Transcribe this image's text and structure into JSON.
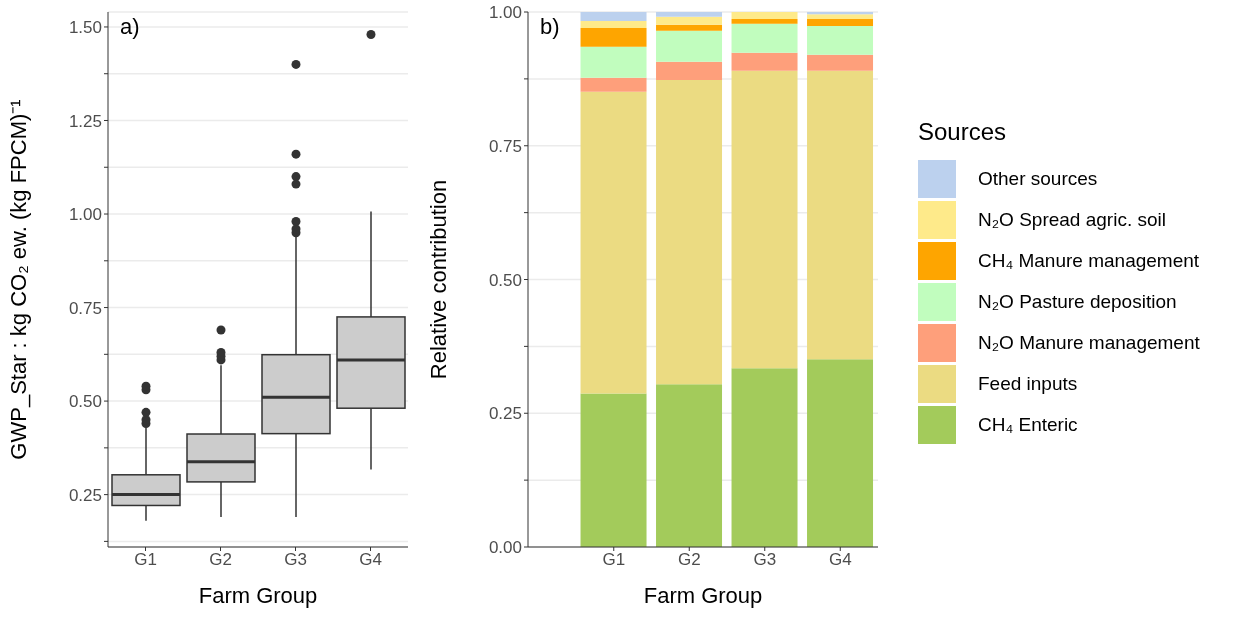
{
  "chart_data": [
    {
      "type": "box",
      "categories": [
        "G1",
        "G2",
        "G3",
        "G4"
      ],
      "xlabel": "Farm Group",
      "ylabel": "GWP_Star :  kg CO₂ ew. (kg FPCM)⁻¹",
      "ylim": [
        0.11,
        1.54
      ],
      "yticks": [
        {
          "value": 0.125,
          "label": null
        },
        {
          "value": 0.25,
          "label": "0.25"
        },
        {
          "value": 0.375,
          "label": null
        },
        {
          "value": 0.5,
          "label": "0.50"
        },
        {
          "value": 0.625,
          "label": null
        },
        {
          "value": 0.75,
          "label": "0.75"
        },
        {
          "value": 0.875,
          "label": null
        },
        {
          "value": 1,
          "label": "1.00"
        },
        {
          "value": 1.125,
          "label": null
        },
        {
          "value": 1.25,
          "label": "1.25"
        },
        {
          "value": 1.375,
          "label": null
        },
        {
          "value": 1.5,
          "label": "1.50"
        }
      ],
      "grid": "y",
      "color": "#cccccc",
      "annotations": [
        "a)"
      ],
      "boxes": [
        {
          "low": 0.18,
          "q1": 0.221,
          "median": 0.25,
          "q3": 0.303,
          "high": 0.43,
          "outliers": [
            0.44,
            0.45,
            0.47,
            0.53,
            0.54
          ]
        },
        {
          "low": 0.19,
          "q1": 0.284,
          "median": 0.338,
          "q3": 0.412,
          "high": 0.596,
          "outliers": [
            0.61,
            0.62,
            0.63,
            0.69
          ]
        },
        {
          "low": 0.19,
          "q1": 0.413,
          "median": 0.51,
          "q3": 0.624,
          "high": 0.941,
          "outliers": [
            0.95,
            0.96,
            0.98,
            1.08,
            1.1,
            1.16,
            1.4
          ]
        },
        {
          "low": 0.317,
          "q1": 0.481,
          "median": 0.61,
          "q3": 0.725,
          "high": 1.007,
          "outliers": [
            1.48
          ]
        }
      ]
    },
    {
      "type": "bar",
      "stacked": true,
      "categories": [
        "G1",
        "G2",
        "G3",
        "G4"
      ],
      "xlabel": "Farm Group",
      "ylabel": "Relative contribution",
      "ylim": [
        0,
        1
      ],
      "yticks": [
        {
          "value": 0,
          "label": "0.00"
        },
        {
          "value": 0.125,
          "label": null
        },
        {
          "value": 0.25,
          "label": "0.25"
        },
        {
          "value": 0.375,
          "label": null
        },
        {
          "value": 0.5,
          "label": "0.50"
        },
        {
          "value": 0.625,
          "label": null
        },
        {
          "value": 0.75,
          "label": "0.75"
        },
        {
          "value": 0.875,
          "label": null
        },
        {
          "value": 1,
          "label": "1.00"
        }
      ],
      "grid": "y",
      "legend": "right",
      "legend_title": "Sources",
      "annotations": [
        "b)"
      ],
      "series": [
        {
          "name": "CH₄ Enteric",
          "color": "#a3cb5b",
          "values": [
            0.287,
            0.304,
            0.334,
            0.351
          ]
        },
        {
          "name": "Feed inputs",
          "color": "#ebdb82",
          "values": [
            0.564,
            0.569,
            0.556,
            0.539
          ]
        },
        {
          "name": "N₂O Manure management",
          "color": "#fe9f7b",
          "values": [
            0.026,
            0.034,
            0.034,
            0.03
          ]
        },
        {
          "name": "N₂O Pasture deposition",
          "color": "#c1fdbe",
          "values": [
            0.058,
            0.058,
            0.054,
            0.054
          ]
        },
        {
          "name": "CH₄ Manure management",
          "color": "#fea500",
          "values": [
            0.035,
            0.011,
            0.009,
            0.013
          ]
        },
        {
          "name": "N₂O Spread agric. soil",
          "color": "#feea8a",
          "values": [
            0.013,
            0.015,
            0.013,
            0.009
          ]
        },
        {
          "name": "Other sources",
          "color": "#bcd1ee",
          "values": [
            0.017,
            0.009,
            0,
            0.004
          ]
        }
      ]
    }
  ]
}
